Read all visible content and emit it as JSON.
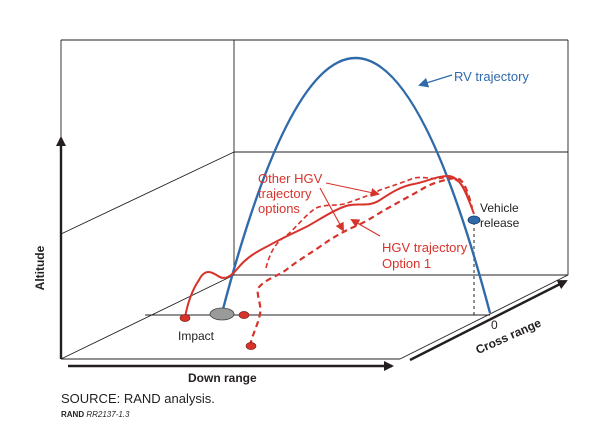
{
  "colors": {
    "rv": "#2f6aaa",
    "hgv": "#d7332b",
    "frame": "#231f20",
    "impact_marker": "#9a9a9a"
  },
  "labels": {
    "rv_trajectory": "RV trajectory",
    "other_hgv_line1": "Other HGV",
    "other_hgv_line2": "trajectory",
    "other_hgv_line3": "options",
    "hgv_option_line1": "HGV trajectory",
    "hgv_option_line2": "Option 1",
    "vehicle_release_line1": "Vehicle",
    "vehicle_release_line2": "release",
    "impact": "Impact",
    "zero": "0",
    "altitude": "Altitude",
    "down_range": "Down range",
    "cross_range": "Cross range"
  },
  "footer": {
    "source": "SOURCE: RAND analysis.",
    "credit_org": "RAND",
    "credit_id": "RR2137-1.3"
  }
}
